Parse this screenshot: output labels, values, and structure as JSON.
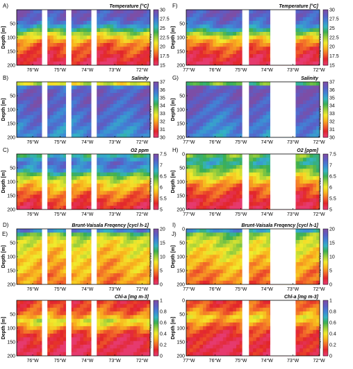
{
  "colors": {
    "gap": "#ffffff",
    "axis": "#000000",
    "scale": [
      "#7c4ea6",
      "#5a5fc7",
      "#3f86d6",
      "#33b3c4",
      "#3aae52",
      "#9ccf3c",
      "#f2ea2c",
      "#f8b41e",
      "#f26b2a",
      "#e2262a",
      "#e63a6e"
    ]
  },
  "watermark": "Ocean Data View",
  "chart_data": [
    {
      "id": "A",
      "letter": "A)",
      "type": "heatmap",
      "title": "Temperature [°C]",
      "ylabel": "Depth [m]",
      "xticks": [
        "76°W",
        "75°W",
        "74°W",
        "73°W",
        "72°W"
      ],
      "yticks": [
        "50",
        "100",
        "150",
        "200"
      ],
      "ylim": [
        200,
        0
      ],
      "colorbar": [
        "30",
        "27.5",
        "25",
        "22.5",
        "20",
        "17.5",
        "15"
      ],
      "cbar_range": [
        15,
        30
      ],
      "rows": [
        29,
        29,
        28.5,
        27.5,
        26,
        24,
        22,
        20.5,
        19,
        18,
        17.5,
        17,
        16.5,
        16,
        15.5
      ],
      "gaps": [
        [
          0.19,
          0.23
        ],
        [
          0.37,
          0.41
        ],
        [
          0.56,
          0.6
        ]
      ]
    },
    {
      "id": "F",
      "letter": "F)",
      "type": "heatmap",
      "title": "Temperature [°C]",
      "ylabel": "Depth [m]",
      "xticks": [
        "77°W",
        "76°W",
        "75°W",
        "74°W",
        "73°W",
        "72°W"
      ],
      "yticks": [
        "50",
        "100",
        "150",
        "200"
      ],
      "ylim": [
        200,
        0
      ],
      "colorbar": [
        "30",
        "27.5",
        "25",
        "22.5",
        "20",
        "17.5",
        "15"
      ],
      "cbar_range": [
        15,
        30
      ],
      "rows": [
        29,
        29,
        28.5,
        28,
        27,
        25,
        23,
        21,
        19.5,
        18.5,
        17.5,
        17,
        16.5,
        16,
        15.5
      ],
      "gaps": [
        [
          0.42,
          0.47
        ],
        [
          0.63,
          0.82
        ]
      ]
    },
    {
      "id": "B",
      "letter": "B)",
      "type": "heatmap",
      "title": "Salinity",
      "ylabel": "Depth [m]",
      "xticks": [
        "76°W",
        "75°W",
        "74°W",
        "73°W",
        "72°W"
      ],
      "yticks": [
        "50",
        "100",
        "150",
        "200"
      ],
      "ylim": [
        200,
        0
      ],
      "colorbar": [
        "37",
        "36",
        "35",
        "34",
        "33",
        "32",
        "31",
        "30"
      ],
      "cbar_range": [
        30,
        37
      ],
      "rows": [
        33,
        36,
        36.4,
        36.5,
        36.5,
        36.4,
        36.3,
        36.2,
        36.1,
        36,
        35.9,
        35.8,
        35.7,
        35.6,
        35.5
      ],
      "gaps": [
        [
          0.19,
          0.23
        ],
        [
          0.37,
          0.41
        ],
        [
          0.56,
          0.6
        ]
      ]
    },
    {
      "id": "G",
      "letter": "G)",
      "type": "heatmap",
      "title": "Salinity",
      "ylabel": "Depth [m]",
      "xticks": [
        "77°W",
        "76°W",
        "75°W",
        "74°W",
        "73°W",
        "72°W"
      ],
      "yticks": [
        "50",
        "100",
        "150",
        "200"
      ],
      "ylim": [
        200,
        0
      ],
      "colorbar": [
        "37",
        "36",
        "35",
        "34",
        "33",
        "32",
        "31",
        "30"
      ],
      "cbar_range": [
        30,
        37
      ],
      "rows": [
        34,
        36.5,
        36.7,
        36.6,
        36.5,
        36.4,
        36.3,
        36.2,
        36.1,
        36,
        35.9,
        35.8,
        35.7,
        35.6,
        35.5
      ],
      "gaps": [
        [
          0.42,
          0.47
        ],
        [
          0.63,
          0.82
        ]
      ]
    },
    {
      "id": "C",
      "letter": "C)",
      "type": "heatmap",
      "title": "O2 ppm",
      "ylabel": "Depth [m]",
      "xticks": [
        "76°W",
        "75°W",
        "74°W",
        "73°W",
        "72°W"
      ],
      "yticks": [
        "50",
        "100",
        "150",
        "200"
      ],
      "ylim": [
        200,
        0
      ],
      "colorbar": [
        "7.5",
        "7",
        "6.5",
        "6",
        "5.5",
        "5"
      ],
      "cbar_range": [
        4.8,
        7.5
      ],
      "rows": [
        6.6,
        6.9,
        7.1,
        7,
        6.8,
        6.4,
        6.1,
        5.9,
        5.7,
        5.6,
        5.4,
        5.3,
        5.2,
        5.1,
        5.0
      ],
      "gaps": [
        [
          0.19,
          0.23
        ],
        [
          0.37,
          0.41
        ],
        [
          0.56,
          0.6
        ]
      ]
    },
    {
      "id": "H",
      "letter": "H)",
      "type": "heatmap",
      "title": "O2 [ppm]",
      "ylabel": "Depth [m]",
      "xticks": [
        "77°W",
        "76°W",
        "75°W",
        "74°W",
        "73°W",
        "72°W"
      ],
      "yticks": [
        "0",
        "50",
        "100",
        "150",
        "200"
      ],
      "ylim": [
        200,
        0
      ],
      "colorbar": [
        "7.5",
        "7",
        "6.5",
        "6",
        "5.5",
        "5"
      ],
      "cbar_range": [
        4.8,
        7.5
      ],
      "rows": [
        6.3,
        6.5,
        6.6,
        6.4,
        6.2,
        6.0,
        5.8,
        5.6,
        5.4,
        5.3,
        5.2,
        5.1,
        5.0,
        4.95,
        4.9
      ],
      "gaps": [
        [
          0.42,
          0.47
        ],
        [
          0.63,
          0.82
        ]
      ]
    },
    {
      "id": "D",
      "letter": "D)",
      "outer_letter": "E)",
      "type": "heatmap",
      "title": "Brunt-Vaisala Freqency [cycl h-1]",
      "ylabel": "Depth [m]",
      "xticks": [
        "76°W",
        "75°W",
        "74°W",
        "73°W",
        "72°W"
      ],
      "yticks": [
        "50",
        "100",
        "150",
        "200"
      ],
      "ylim": [
        200,
        0
      ],
      "colorbar": [
        "20",
        "15",
        "10",
        "5",
        "0"
      ],
      "cbar_range": [
        0,
        20
      ],
      "rows": [
        16,
        11,
        9,
        8,
        8,
        7,
        7,
        7,
        6,
        6,
        6,
        6,
        5,
        5,
        5
      ],
      "gaps": [
        [
          0.19,
          0.23
        ],
        [
          0.37,
          0.41
        ],
        [
          0.56,
          0.6
        ]
      ]
    },
    {
      "id": "I",
      "letter": "I)",
      "outer_letter": "J)",
      "type": "heatmap",
      "title": "Brunt-Vaisala Freqency [cycl h-1]",
      "ylabel": "Depth [m]",
      "xticks": [
        "77°W",
        "76°W",
        "75°W",
        "74°W",
        "73°W",
        "72°W"
      ],
      "yticks": [
        "0",
        "50",
        "100",
        "150",
        "200"
      ],
      "ylim": [
        200,
        0
      ],
      "colorbar": [
        "20",
        "15",
        "10",
        "5",
        "0"
      ],
      "cbar_range": [
        0,
        20
      ],
      "rows": [
        15,
        11,
        10,
        9,
        9,
        8,
        8,
        7,
        7,
        6,
        6,
        5,
        5,
        5,
        4
      ],
      "gaps": [
        [
          0.42,
          0.47
        ],
        [
          0.63,
          0.82
        ]
      ]
    },
    {
      "id": "E",
      "letter": "",
      "type": "heatmap",
      "title": "Chl-a [mg m-3]",
      "ylabel": "Depth [m]",
      "xticks": [
        "76°W",
        "75°W",
        "74°W",
        "73°W",
        "72°W"
      ],
      "yticks": [
        "50",
        "100",
        "150",
        "200"
      ],
      "ylim": [
        200,
        0
      ],
      "colorbar": [
        "1",
        "0.8",
        "0.6",
        "0.4",
        "0.2",
        "0"
      ],
      "cbar_range": [
        0,
        1
      ],
      "rows": [
        0.12,
        0.14,
        0.17,
        0.22,
        0.3,
        0.42,
        0.36,
        0.26,
        0.18,
        0.12,
        0.08,
        0.06,
        0.05,
        0.04,
        0.04
      ],
      "gaps": [
        [
          0.19,
          0.23
        ],
        [
          0.37,
          0.41
        ],
        [
          0.56,
          0.6
        ]
      ]
    },
    {
      "id": "J",
      "letter": "",
      "type": "heatmap",
      "title": "Chl-a [mg m-3]",
      "ylabel": "Depth [m]",
      "xticks": [
        "77°W",
        "76°W",
        "75°W",
        "74°W",
        "73°W",
        "72°W"
      ],
      "yticks": [
        "0",
        "50",
        "100",
        "150",
        "200"
      ],
      "ylim": [
        200,
        0
      ],
      "colorbar": [
        "1",
        "0.8",
        "0.6",
        "0.4",
        "0.2",
        "0"
      ],
      "cbar_range": [
        0,
        1
      ],
      "rows": [
        0.14,
        0.16,
        0.2,
        0.26,
        0.34,
        0.3,
        0.22,
        0.16,
        0.12,
        0.09,
        0.07,
        0.06,
        0.05,
        0.05,
        0.04
      ],
      "gaps": [
        [
          0.42,
          0.47
        ],
        [
          0.63,
          0.82
        ]
      ]
    }
  ]
}
